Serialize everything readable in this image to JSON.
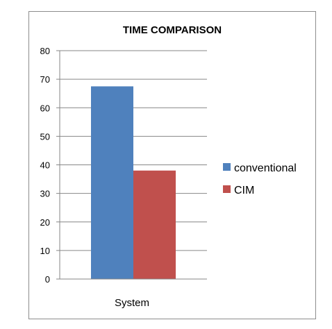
{
  "chart_data": {
    "type": "bar",
    "title": "TIME COMPARISON",
    "categories": [
      "System"
    ],
    "series": [
      {
        "name": "conventional",
        "values": [
          67.5
        ],
        "color": "#4f81bd"
      },
      {
        "name": "CIM",
        "values": [
          38
        ],
        "color": "#c0504d"
      }
    ],
    "ylim": [
      0,
      80
    ],
    "yticks": [
      "0",
      "10",
      "20",
      "30",
      "40",
      "50",
      "60",
      "70",
      "80"
    ],
    "grid": true,
    "legend_position": "right"
  }
}
